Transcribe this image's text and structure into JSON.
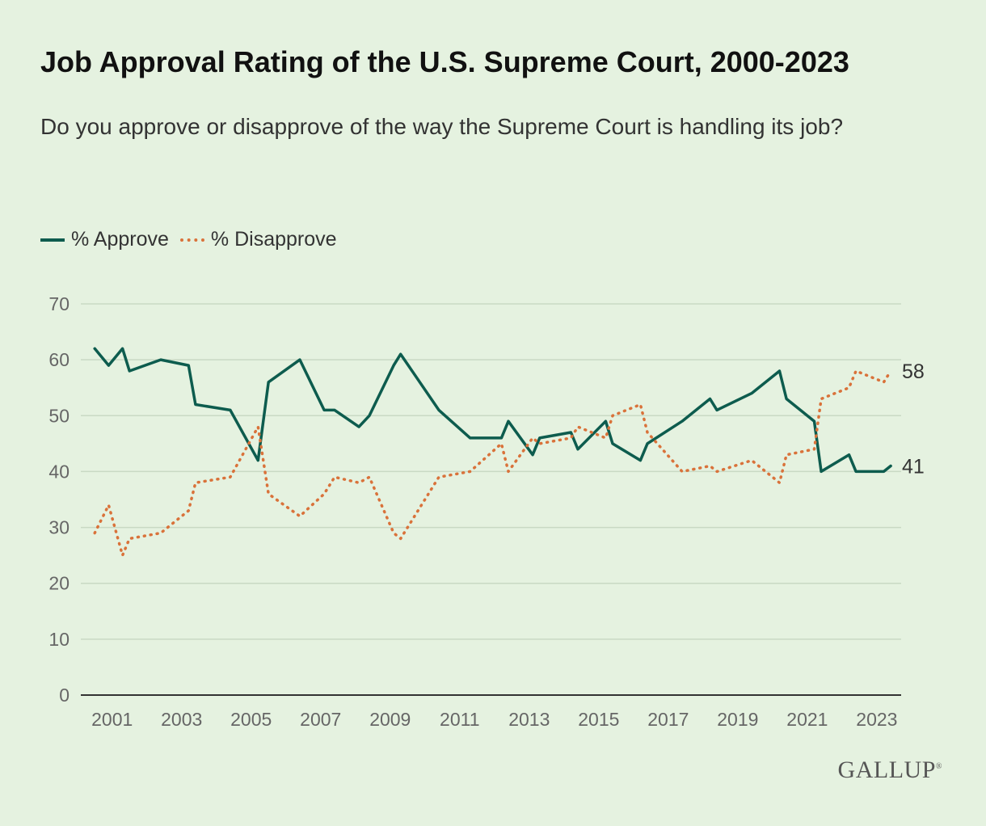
{
  "header": {
    "title": "Job Approval Rating of the U.S. Supreme Court, 2000-2023",
    "subtitle": "Do you approve or disapprove of the way the Supreme Court is handling its job?"
  },
  "legend": {
    "approve_label": "% Approve",
    "disapprove_label": "% Disapprove"
  },
  "end_labels": {
    "approve": "41",
    "disapprove": "58"
  },
  "logo": {
    "text": "GALLUP",
    "mark": "®"
  },
  "colors": {
    "background": "#e5f2e0",
    "approve": "#0d5c4e",
    "disapprove": "#d9723a",
    "grid": "#c9d9c4",
    "axis": "#333333"
  },
  "chart_data": {
    "type": "line",
    "title": "Job Approval Rating of the U.S. Supreme Court, 2000-2023",
    "xlabel": "",
    "ylabel": "",
    "xlim": [
      2000.6,
      2024.2
    ],
    "ylim": [
      0,
      70
    ],
    "yticks": [
      0,
      10,
      20,
      30,
      40,
      50,
      60,
      70
    ],
    "xticks": [
      2001,
      2003,
      2005,
      2007,
      2009,
      2011,
      2013,
      2015,
      2017,
      2019,
      2021,
      2023
    ],
    "grid": true,
    "legend_position": "top-left",
    "series": [
      {
        "name": "% Approve",
        "style": "solid",
        "points": [
          [
            2001.0,
            62
          ],
          [
            2001.4,
            59
          ],
          [
            2001.8,
            62
          ],
          [
            2002.0,
            58
          ],
          [
            2002.9,
            60
          ],
          [
            2003.7,
            59
          ],
          [
            2003.9,
            52
          ],
          [
            2004.9,
            51
          ],
          [
            2005.7,
            42
          ],
          [
            2006.0,
            56
          ],
          [
            2006.9,
            60
          ],
          [
            2007.6,
            51
          ],
          [
            2007.9,
            51
          ],
          [
            2008.6,
            48
          ],
          [
            2008.9,
            50
          ],
          [
            2009.6,
            59
          ],
          [
            2009.8,
            61
          ],
          [
            2010.9,
            51
          ],
          [
            2011.8,
            46
          ],
          [
            2012.7,
            46
          ],
          [
            2012.9,
            49
          ],
          [
            2013.6,
            43
          ],
          [
            2013.8,
            46
          ],
          [
            2014.7,
            47
          ],
          [
            2014.9,
            44
          ],
          [
            2015.7,
            49
          ],
          [
            2015.9,
            45
          ],
          [
            2016.7,
            42
          ],
          [
            2016.9,
            45
          ],
          [
            2017.9,
            49
          ],
          [
            2018.7,
            53
          ],
          [
            2018.9,
            51
          ],
          [
            2019.9,
            54
          ],
          [
            2020.7,
            58
          ],
          [
            2020.9,
            53
          ],
          [
            2021.7,
            49
          ],
          [
            2021.9,
            40
          ],
          [
            2022.7,
            43
          ],
          [
            2022.9,
            40
          ],
          [
            2023.7,
            40
          ],
          [
            2023.9,
            41
          ]
        ]
      },
      {
        "name": "% Disapprove",
        "style": "dotted",
        "points": [
          [
            2001.0,
            29
          ],
          [
            2001.4,
            34
          ],
          [
            2001.8,
            25
          ],
          [
            2002.0,
            28
          ],
          [
            2002.9,
            29
          ],
          [
            2003.7,
            33
          ],
          [
            2003.9,
            38
          ],
          [
            2004.9,
            39
          ],
          [
            2005.7,
            48
          ],
          [
            2006.0,
            36
          ],
          [
            2006.9,
            32
          ],
          [
            2007.6,
            36
          ],
          [
            2007.9,
            39
          ],
          [
            2008.6,
            38
          ],
          [
            2008.9,
            39
          ],
          [
            2009.6,
            29
          ],
          [
            2009.8,
            28
          ],
          [
            2010.9,
            39
          ],
          [
            2011.8,
            40
          ],
          [
            2012.7,
            45
          ],
          [
            2012.9,
            40
          ],
          [
            2013.6,
            46
          ],
          [
            2013.8,
            45
          ],
          [
            2014.7,
            46
          ],
          [
            2014.9,
            48
          ],
          [
            2015.7,
            46
          ],
          [
            2015.9,
            50
          ],
          [
            2016.7,
            52
          ],
          [
            2016.9,
            47
          ],
          [
            2017.9,
            40
          ],
          [
            2018.7,
            41
          ],
          [
            2018.9,
            40
          ],
          [
            2019.9,
            42
          ],
          [
            2020.7,
            38
          ],
          [
            2020.9,
            43
          ],
          [
            2021.7,
            44
          ],
          [
            2021.9,
            53
          ],
          [
            2022.7,
            55
          ],
          [
            2022.9,
            58
          ],
          [
            2023.7,
            56
          ],
          [
            2023.9,
            58
          ]
        ]
      }
    ]
  }
}
